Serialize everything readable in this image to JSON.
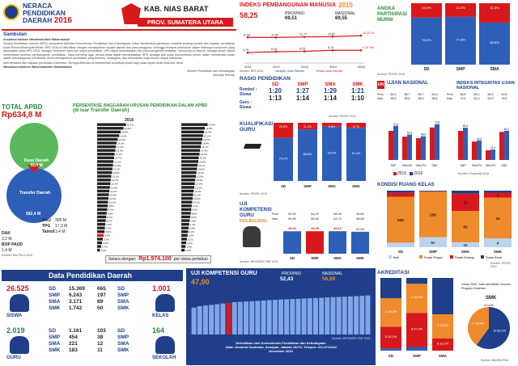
{
  "header": {
    "title_line1": "NERACA",
    "title_line2": "PENDIDIKAN",
    "title_line3": "DAERAH",
    "year": "2016",
    "region": "KAB. NIAS BARAT",
    "province": "PROV. SUMATERA UTARA",
    "colors": {
      "red": "#d7191c",
      "navy": "#1f3f8a",
      "blue": "#2e5fb8",
      "green": "#5cb85c",
      "orange": "#ef8a2d"
    }
  },
  "sambutan": {
    "title": "Sambutan",
    "greeting": "Assalamu'alaikum Warahmatullahi Wabarakatuh",
    "p1": "Neraca Pendidikan Daerah (NPD) merupakan Aktivitas Kementerian Pendidikan dan Kebudayaan untuk memberikan gambaran mutakhir tentang kondisi dan capaian pendidikan suatu Provinsi/Kabupaten/Kota. NPD 2016 ini diterbitkan dengan menampilkan muatan daerah dan para pengguna, sehingga terdapat perubahan dalam beberapa komponen yang ditampilkan pada NPD 2015. Sebagai instrumen input dan output pendidikan, NPD dapat dimanfaatkan oleh para pengambil kebijakan, khususnya di daerah, sebagai acuan dalam menentukan prioritas pembangunan pendidikan. Saya berharap agar semua pihak dapat memanfaatkan NPD sebagai alat untuk berkontribusi penuh dalam membentuk suatu sistem pembangunan pendidikan demi meningkatkan pendidikan yang bermutu, terjangkau, dan berkeadilan bagi seluruh rakyat Indonesia.",
    "p2": "Mari bersama kita majukan pendidikan Indonesia. Semoga Aktivitas ini memberikan kontribusi positif bagi masa depan anak didik kita. Amin.",
    "closing": "Wassalamu'alaikum Warahmatullahi Wabarakatuh",
    "signature": "Menteri Pendidikan dan Kebudayaan\nMuhadjir Effendy"
  },
  "ipm": {
    "title": "INDEKS PEMBANGUNAN MANUSIA",
    "year": "2015",
    "kab_value": "58,25",
    "prov_label": "PROVINSI",
    "prov_value": "69,51",
    "nas_label": "NASIONAL",
    "nas_value": "69,55",
    "years": [
      "2011",
      "2012",
      "2013",
      "2014",
      "2015"
    ],
    "harapan": [
      11.54,
      11.5,
      11.77,
      11.87,
      12.33
    ],
    "harapan_labels": [
      "11,54",
      "11,50",
      "11,77",
      "11,87",
      "12,33 Tahun"
    ],
    "rata": [
      4.7,
      5.1,
      5.25,
      5.73,
      5.74
    ],
    "rata_labels": [
      "4,70",
      "5,10",
      "5,25",
      "5,73",
      "5,74 Tahun"
    ],
    "legend_harapan": "Harapan Lama Sekolah",
    "legend_rata": "Rerata Lama Sekolah",
    "source": "Sumber: BPS 2015"
  },
  "apm": {
    "title": "ANGKA PARTISIPASI MURNI",
    "levels": [
      "SD",
      "SMP",
      "SMA"
    ],
    "values": [
      76.5,
      77.8,
      68.5
    ],
    "value_labels": [
      "76,5%",
      "77,8%",
      "68,5%"
    ],
    "rest_labels": [
      "23,5%",
      "22,2%",
      "31,5%"
    ],
    "source": "Sumber: PDSPK 2016"
  },
  "total_apbd": {
    "title": "TOTAL APBD",
    "value": "Rp634,8 M",
    "dana_daerah_label": "Dana Daerah",
    "dana_daerah_value": "52,4 M",
    "transfer_label": "Transfer Daerah",
    "transfer_value": "582,4 M",
    "transfer_share": 0.917,
    "dau_label": "DAU",
    "dau_value": "305 M",
    "tpg_label": "TPG",
    "tpg_value": "17,3 M",
    "tamsil_label": "Tamsil",
    "tamsil_value": "3,4 M",
    "dak_label": "DAK",
    "dak_value": "2,2 M",
    "bop_label": "BOP PAUD",
    "bop_value": "1,4 M",
    "source": "Sumber: Biro PKLN 2016"
  },
  "anggaran": {
    "title": "PERSENTASE ANGGARAN URUSAN PENDIDIKAN DALAM APBD",
    "subtitle": "(di luar Transfer Daerah)",
    "year": "2016",
    "left_values": [
      26.7,
      24.4,
      21.8,
      20.5,
      19.2,
      18.0,
      17.4,
      16.9,
      16.2,
      15.7,
      15.1,
      14.8,
      14.2,
      13.8,
      13.1,
      12.7,
      12.3,
      11.9,
      11.4,
      10.9,
      10.5,
      10.1,
      9.8,
      9.4,
      8.9,
      8.4,
      8.0,
      7.6,
      7.2,
      6.8,
      6.0,
      5.3,
      4.6,
      3.7,
      2.6
    ],
    "highlight_index": 30,
    "right_values": [
      24.4,
      21.8,
      20.9,
      20.1,
      19.5,
      18.8,
      18.1,
      17.4,
      16.9,
      16.2,
      15.8,
      15.1,
      14.5,
      14.0,
      13.6,
      12.9,
      12.5,
      12.0,
      11.5,
      11.0,
      10.6,
      10.1,
      9.7,
      9.2,
      8.8,
      8.3,
      7.8,
      7.3,
      6.8,
      6.3,
      5.8,
      5.2,
      4.6,
      3.9,
      3.1
    ],
    "footer_label": "Setara dengan:",
    "footer_value": "Rp1.974.100",
    "footer_unit": "per siswa pertahun"
  },
  "rasio": {
    "title": "RASIO PENDIDIKAN",
    "row1_label": "Rombel : Siswa",
    "row2_label": "Guru : Siswa",
    "levels": [
      "SD",
      "SMP",
      "SMA",
      "SMK"
    ],
    "row1": [
      "1:20",
      "1:27",
      "1:29",
      "1:21"
    ],
    "row2": [
      "1:13",
      "1:14",
      "1:14",
      "1:10"
    ],
    "source": "Sumber: PDSPK 2016"
  },
  "kualifikasi": {
    "title": "KUALIFIKASI GURU",
    "levels": [
      "SD",
      "SMP",
      "SMA",
      "SMK"
    ],
    "layak": [
      74.1,
      88.8,
      93.4,
      91.3
    ],
    "layak_labels": [
      "74,1%",
      "88,8%",
      "93,4%",
      "91,3%"
    ],
    "tidak_labels": [
      "25,9%",
      "11,2%",
      "6,6%",
      "8,7%"
    ],
    "legend": [
      "Layak",
      "Tidak Layak"
    ],
    "source": "Sumber: PDSPK 2016"
  },
  "ukg": {
    "title": "UJI KOMPETENSI GURU",
    "subtitle": "PERJENJANG",
    "levels": [
      "SD",
      "SMP",
      "SMA",
      "SMK"
    ],
    "prov_label": "Prov.",
    "nas_label": "Nas.",
    "prov": [
      "50,69",
      "54,29",
      "58,28",
      "50,82"
    ],
    "nas": [
      "54,89",
      "58,46",
      "61,74",
      "58,86"
    ],
    "values": [
      49.02,
      49.09,
      49.12,
      47.91
    ],
    "value_labels": [
      "49,02",
      "49,09",
      "49,12",
      "47,91"
    ],
    "source": "Sumber: BPSDMPK-PMP 2015"
  },
  "un": {
    "title": "UJIAN NASIONAL",
    "prov_label": "Prov.",
    "nas_label": "Nas.",
    "prov": [
      "66,4",
      "88,7",
      "68,7",
      "64,6"
    ],
    "nas": [
      "58,6",
      "56,8",
      "58,9",
      "58,6"
    ],
    "levels": [
      "SMP",
      "SMA IPA",
      "SMA IPS",
      "SMK"
    ],
    "v2015": [
      60,
      48,
      45,
      67
    ],
    "v2016": [
      70.4,
      52.4,
      48.9,
      73.8
    ],
    "labels_2016": [
      "70,4",
      "52,4",
      "48,9",
      "73,8"
    ],
    "legend": [
      "2015",
      "2016"
    ]
  },
  "iiu": {
    "title": "INDEKS INTEGRITAS UJIAN NASIONAL",
    "prov": [
      "58,6",
      "68,1",
      "68,3",
      "69,8"
    ],
    "nas": [
      "70,4",
      "63,3",
      "63,9",
      "78,5"
    ],
    "levels": [
      "SMP",
      "SMA IPA",
      "SMA IPS",
      "SMK"
    ],
    "v2015": [
      60,
      38,
      20,
      58
    ],
    "v2016": [
      66.4,
      40.4,
      21.5,
      60.1
    ],
    "labels_2016": [
      "66,4",
      "40,4",
      "21,5",
      "60,1"
    ],
    "source": "Sumber: Puspendik 2016"
  },
  "ruang": {
    "title": "KONDISI RUANG KELAS",
    "levels": [
      "SD",
      "SMP",
      "SMA",
      "SMK"
    ],
    "baik": [
      54,
      57,
      10,
      9
    ],
    "rusak_ringan": [
      546,
      258,
      63,
      41
    ],
    "rusak_sedang": [
      49,
      2,
      35,
      5
    ],
    "rusak_berat": [
      23,
      4,
      6,
      2
    ],
    "legend": [
      "Baik",
      "Rusak Ringan",
      "Rusak Sedang",
      "Rusak Berat"
    ],
    "source": "Sumber: PDSPK 2016"
  },
  "data_pendidikan": {
    "title": "Data Pendidikan Daerah",
    "siswa_label": "SISWA",
    "siswa_total": "26.525",
    "siswa_rows": [
      [
        "SD",
        "15.369"
      ],
      [
        "SMP",
        "6.243"
      ],
      [
        "SMA",
        "3.171"
      ],
      [
        "SMK",
        "1.742"
      ]
    ],
    "kelas_label": "KELAS",
    "kelas_total": "1.001",
    "kelas_rows": [
      [
        "665",
        "SD"
      ],
      [
        "197",
        "SMP"
      ],
      [
        "89",
        "SMA"
      ],
      [
        "50",
        "SMK"
      ]
    ],
    "guru_label": "GURU",
    "guru_total": "2.019",
    "guru_rows": [
      [
        "SD",
        "1.161"
      ],
      [
        "SMP",
        "454"
      ],
      [
        "SMA",
        "221"
      ],
      [
        "SMK",
        "183"
      ]
    ],
    "sekolah_label": "SEKOLAH",
    "sekolah_total": "164",
    "sekolah_rows": [
      [
        "103",
        "SD"
      ],
      [
        "38",
        "SMP"
      ],
      [
        "12",
        "SMA"
      ],
      [
        "11",
        "SMK"
      ]
    ]
  },
  "ukg_kab": {
    "title": "UJI KOMPETENSI GURU",
    "value": "47,00",
    "prov_label": "PROVINSI",
    "prov_value": "52,43",
    "nas_label": "NASIONAL",
    "nas_value": "56,69",
    "values": [
      40,
      42,
      43,
      44,
      45,
      46,
      47,
      48,
      48.5,
      49,
      49.5,
      50,
      50.5,
      51,
      51.5,
      52,
      52.3,
      52.6,
      53,
      53.4,
      53.8,
      54.2,
      54.6,
      55,
      55.4,
      55.8,
      56.2,
      56.6,
      57,
      57.4,
      58
    ],
    "highlight_index": 6,
    "source": "Sumber: BPSDMPK-PMP 2015",
    "publisher1": "Diterbitkan oleh Kementerian Pendidikan dan Kebudayaan",
    "publisher2": "Jalan Jenderal Sudirman, Senayan, Jakarta 10270, Telepon: 021-5711144",
    "publisher3": "November 2016"
  },
  "akreditasi": {
    "title": "AKREDITASI",
    "levels": [
      "SD",
      "SMP",
      "SMA"
    ],
    "a": [
      3,
      5,
      0
    ],
    "b": [
      30,
      47,
      17
    ],
    "c": [
      39,
      40,
      33
    ],
    "belum": [
      28,
      8,
      50
    ],
    "labels": [
      [
        "B",
        "30,1%"
      ],
      [
        "C",
        "39,2%"
      ],
      [
        "B",
        "47,4%"
      ],
      [
        "C",
        "40,0%"
      ],
      [
        "B",
        "16,7%"
      ],
      [
        "C",
        "33,3%"
      ]
    ],
    "smk_note": "Untuk SMK, hasil akreditasi menurut Program Keahlian",
    "smk_label": "SMK",
    "smk_pie": [
      {
        "label": "A",
        "share": 0.0
      },
      {
        "label": "B",
        "share": 0.6
      },
      {
        "label": "C",
        "share": 0.4
      }
    ],
    "smk_pie_labels": [
      "0,0%",
      "60,0%",
      "40,0%"
    ],
    "source": "Sumber: BANSM 2016"
  },
  "chart_data": [
    {
      "type": "line",
      "title": "INDEKS PEMBANGUNAN MANUSIA",
      "x": [
        "2011",
        "2012",
        "2013",
        "2014",
        "2015"
      ],
      "series": [
        {
          "name": "Harapan Lama Sekolah",
          "values": [
            11.54,
            11.5,
            11.77,
            11.87,
            12.33
          ]
        },
        {
          "name": "Rerata Lama Sekolah",
          "values": [
            4.7,
            5.1,
            5.25,
            5.73,
            5.74
          ]
        }
      ]
    },
    {
      "type": "bar",
      "title": "ANGKA PARTISIPASI MURNI",
      "categories": [
        "SD",
        "SMP",
        "SMA"
      ],
      "values": [
        76.5,
        77.8,
        68.5
      ]
    },
    {
      "type": "bar",
      "title": "KUALIFIKASI GURU",
      "categories": [
        "SD",
        "SMP",
        "SMA",
        "SMK"
      ],
      "series": [
        {
          "name": "Layak",
          "values": [
            74.1,
            88.8,
            93.4,
            91.3
          ]
        },
        {
          "name": "Tidak Layak",
          "values": [
            25.9,
            11.2,
            6.6,
            8.7
          ]
        }
      ]
    },
    {
      "type": "bar",
      "title": "UJI KOMPETENSI GURU",
      "categories": [
        "SD",
        "SMP",
        "SMA",
        "SMK"
      ],
      "values": [
        49.02,
        49.09,
        49.12,
        47.91
      ]
    },
    {
      "type": "bar",
      "title": "UJIAN NASIONAL",
      "categories": [
        "SMP",
        "SMA IPA",
        "SMA IPS",
        "SMK"
      ],
      "series": [
        {
          "name": "2015",
          "values": [
            60,
            48,
            45,
            67
          ]
        },
        {
          "name": "2016",
          "values": [
            70.4,
            52.4,
            48.9,
            73.8
          ]
        }
      ]
    },
    {
      "type": "bar",
      "title": "KONDISI RUANG KELAS",
      "categories": [
        "SD",
        "SMP",
        "SMA",
        "SMK"
      ],
      "series": [
        {
          "name": "Baik",
          "values": [
            54,
            57,
            10,
            9
          ]
        },
        {
          "name": "Rusak Ringan",
          "values": [
            546,
            258,
            63,
            41
          ]
        },
        {
          "name": "Rusak Sedang",
          "values": [
            49,
            2,
            35,
            5
          ]
        },
        {
          "name": "Rusak Berat",
          "values": [
            23,
            4,
            6,
            2
          ]
        }
      ]
    }
  ]
}
